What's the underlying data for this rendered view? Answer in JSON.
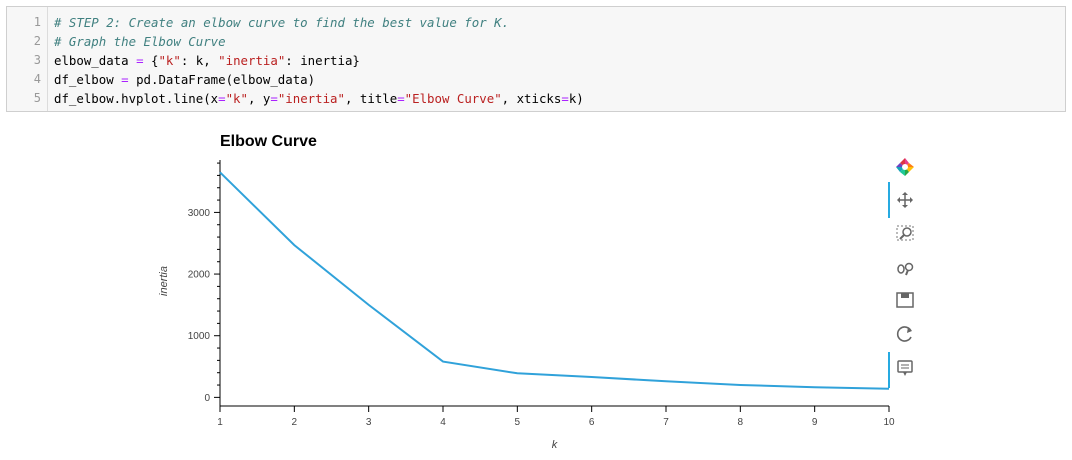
{
  "cell": {
    "line_numbers": [
      "1",
      "2",
      "3",
      "4",
      "5"
    ],
    "code_lines": [
      [
        {
          "t": "# STEP 2: Create an elbow curve to find the best value for K.",
          "c": "cm"
        }
      ],
      [
        {
          "t": "# Graph the Elbow Curve",
          "c": "cm"
        }
      ],
      [
        {
          "t": "elbow_data ",
          "c": ""
        },
        {
          "t": "=",
          "c": "op"
        },
        {
          "t": " {",
          "c": ""
        },
        {
          "t": "\"k\"",
          "c": "st"
        },
        {
          "t": ": k, ",
          "c": ""
        },
        {
          "t": "\"inertia\"",
          "c": "st"
        },
        {
          "t": ": inertia}",
          "c": ""
        }
      ],
      [
        {
          "t": "df_elbow ",
          "c": ""
        },
        {
          "t": "=",
          "c": "op"
        },
        {
          "t": " pd.DataFrame(elbow_data)",
          "c": ""
        }
      ],
      [
        {
          "t": "df_elbow.hvplot.line(x",
          "c": ""
        },
        {
          "t": "=",
          "c": "op"
        },
        {
          "t": "\"k\"",
          "c": "st"
        },
        {
          "t": ", y",
          "c": ""
        },
        {
          "t": "=",
          "c": "op"
        },
        {
          "t": "\"inertia\"",
          "c": "st"
        },
        {
          "t": ", title",
          "c": ""
        },
        {
          "t": "=",
          "c": "op"
        },
        {
          "t": "\"Elbow Curve\"",
          "c": "st"
        },
        {
          "t": ", xticks",
          "c": ""
        },
        {
          "t": "=",
          "c": "op"
        },
        {
          "t": "k)",
          "c": ""
        }
      ]
    ]
  },
  "toolbar": {
    "icons": [
      "bokeh-logo-icon",
      "pan-icon",
      "box-zoom-icon",
      "wheel-zoom-icon",
      "save-icon",
      "reset-icon",
      "hover-icon"
    ]
  },
  "chart_data": {
    "type": "line",
    "title": "Elbow Curve",
    "xlabel": "k",
    "ylabel": "inertia",
    "x": [
      1,
      2,
      3,
      4,
      5,
      6,
      7,
      8,
      9,
      10
    ],
    "y": [
      3650,
      2470,
      1500,
      580,
      390,
      330,
      260,
      200,
      165,
      140
    ],
    "xticks": [
      "1",
      "2",
      "3",
      "4",
      "5",
      "6",
      "7",
      "8",
      "9",
      "10"
    ],
    "yticks": [
      "0",
      "1000",
      "2000",
      "3000"
    ],
    "ytick_values": [
      0,
      1000,
      2000,
      3000
    ],
    "xlim": [
      1,
      10
    ],
    "ylim": [
      -140,
      3850
    ],
    "line_color": "#30a2da",
    "grid": false
  }
}
